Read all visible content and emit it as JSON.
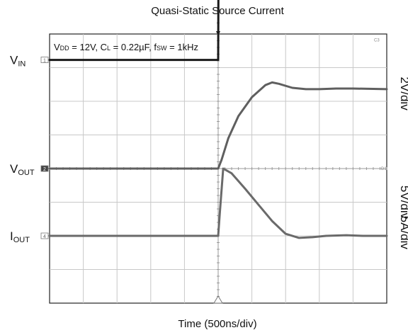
{
  "chart_data": {
    "type": "line",
    "title": "Quasi-Static Source Current",
    "xlabel": "Time (500ns/div)",
    "annotation": {
      "vdd": {
        "main": "V",
        "sub": "DD",
        "rest": " = 12V, "
      },
      "cl": {
        "main": "C",
        "sub": "L",
        "rest": " = 0.22µF, "
      },
      "fsw": {
        "main": "f",
        "sub": "SW",
        "rest": " = 1kHz"
      }
    },
    "grid": {
      "x_divisions": 10,
      "y_divisions": 8,
      "grid": true
    },
    "x_range_div": [
      -5,
      5
    ],
    "series": [
      {
        "name": "V_IN",
        "label_main": "V",
        "label_sub": "IN",
        "marker": "1",
        "color": "#1a1a1a",
        "scale_text": "2V/div",
        "offset_div": 3.23,
        "volts_per_div": 2,
        "unit": "V",
        "x_div": [
          -5,
          0,
          0.02,
          5
        ],
        "y_value": [
          0,
          0,
          12,
          12
        ]
      },
      {
        "name": "V_OUT",
        "label_main": "V",
        "label_sub": "OUT",
        "marker": "2",
        "color": "#5f5f5f",
        "scale_text": "5V/div",
        "offset_div": 0.0,
        "volts_per_div": 5,
        "unit": "V",
        "x_div": [
          -5,
          0.0,
          0.1,
          0.3,
          0.6,
          1.0,
          1.4,
          1.6,
          1.8,
          2.2,
          2.6,
          3.0,
          3.5,
          4.0,
          5.0
        ],
        "y_value": [
          0,
          0,
          1.3,
          4.5,
          7.8,
          10.6,
          12.4,
          12.8,
          12.6,
          12.0,
          11.8,
          11.8,
          11.9,
          11.9,
          11.8
        ]
      },
      {
        "name": "I_OUT",
        "label_main": "I",
        "label_sub": "OUT",
        "marker": "4",
        "color": "#6a6a6a",
        "scale_text": "5A/div",
        "offset_div": -2.0,
        "volts_per_div": 5,
        "unit": "A",
        "x_div": [
          -5,
          0.0,
          0.05,
          0.15,
          0.4,
          0.8,
          1.2,
          1.6,
          2.0,
          2.4,
          2.8,
          3.2,
          3.8,
          4.3,
          5.0
        ],
        "y_value": [
          0,
          0,
          3.5,
          10.0,
          9.3,
          7.0,
          4.6,
          2.2,
          0.3,
          -0.3,
          -0.2,
          0.0,
          0.1,
          0.0,
          0.0
        ]
      }
    ],
    "trigger_text": "C3",
    "ref_text": "D1"
  }
}
